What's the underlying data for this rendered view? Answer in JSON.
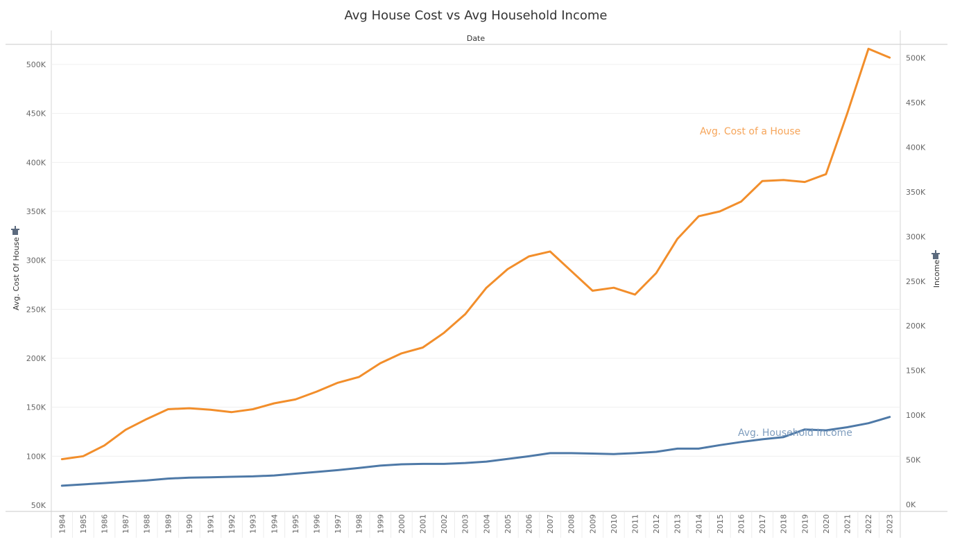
{
  "chart_data": {
    "type": "line",
    "title": "Avg House Cost vs Avg Household Income",
    "xlabel": "Date",
    "ylabel_left": "Avg. Cost Of House",
    "ylabel_right": "Income",
    "x": [
      "1984",
      "1985",
      "1986",
      "1987",
      "1988",
      "1989",
      "1990",
      "1991",
      "1992",
      "1993",
      "1994",
      "1995",
      "1996",
      "1997",
      "1998",
      "1999",
      "2000",
      "2001",
      "2002",
      "2003",
      "2004",
      "2005",
      "2006",
      "2007",
      "2008",
      "2009",
      "2010",
      "2011",
      "2012",
      "2013",
      "2014",
      "2015",
      "2016",
      "2017",
      "2018",
      "2019",
      "2020",
      "2021",
      "2022",
      "2023"
    ],
    "ylim_left": [
      50000,
      520000
    ],
    "ylim_right": [
      0,
      520000
    ],
    "yticks_left": [
      50000,
      100000,
      150000,
      200000,
      250000,
      300000,
      350000,
      400000,
      450000,
      500000
    ],
    "yticks_left_labels": [
      "50K",
      "100K",
      "150K",
      "200K",
      "250K",
      "300K",
      "350K",
      "400K",
      "450K",
      "500K"
    ],
    "yticks_right": [
      0,
      50000,
      100000,
      150000,
      200000,
      250000,
      300000,
      350000,
      400000,
      450000,
      500000
    ],
    "yticks_right_labels": [
      "0K",
      "50K",
      "100K",
      "150K",
      "200K",
      "250K",
      "300K",
      "350K",
      "400K",
      "450K",
      "500K"
    ],
    "grid": true,
    "series": [
      {
        "name": "Avg. Cost of a House",
        "axis": "left",
        "color": "#F28E2B",
        "label_position": "upper-right",
        "values": [
          97000,
          100000,
          111000,
          127000,
          138000,
          148000,
          149000,
          147500,
          145000,
          148000,
          154000,
          158000,
          166000,
          175000,
          181000,
          195000,
          205000,
          211000,
          226000,
          245000,
          272000,
          291000,
          304000,
          309000,
          289000,
          269000,
          272000,
          265000,
          287000,
          322000,
          345000,
          350000,
          360000,
          381000,
          382000,
          380000,
          388000,
          450000,
          516000,
          507000
        ]
      },
      {
        "name": "Avg. Household Income",
        "axis": "right",
        "color": "#4E79A7",
        "label_position": "lower-right",
        "values": [
          21000,
          22500,
          24000,
          25500,
          27000,
          29000,
          30000,
          30500,
          31000,
          31500,
          32500,
          34500,
          36500,
          38500,
          41000,
          43500,
          45000,
          45500,
          45500,
          46500,
          48000,
          51000,
          54000,
          57500,
          57500,
          57000,
          56500,
          57500,
          59000,
          62500,
          62500,
          66500,
          70000,
          73000,
          75500,
          84000,
          83000,
          86500,
          91000,
          98000
        ]
      }
    ]
  }
}
